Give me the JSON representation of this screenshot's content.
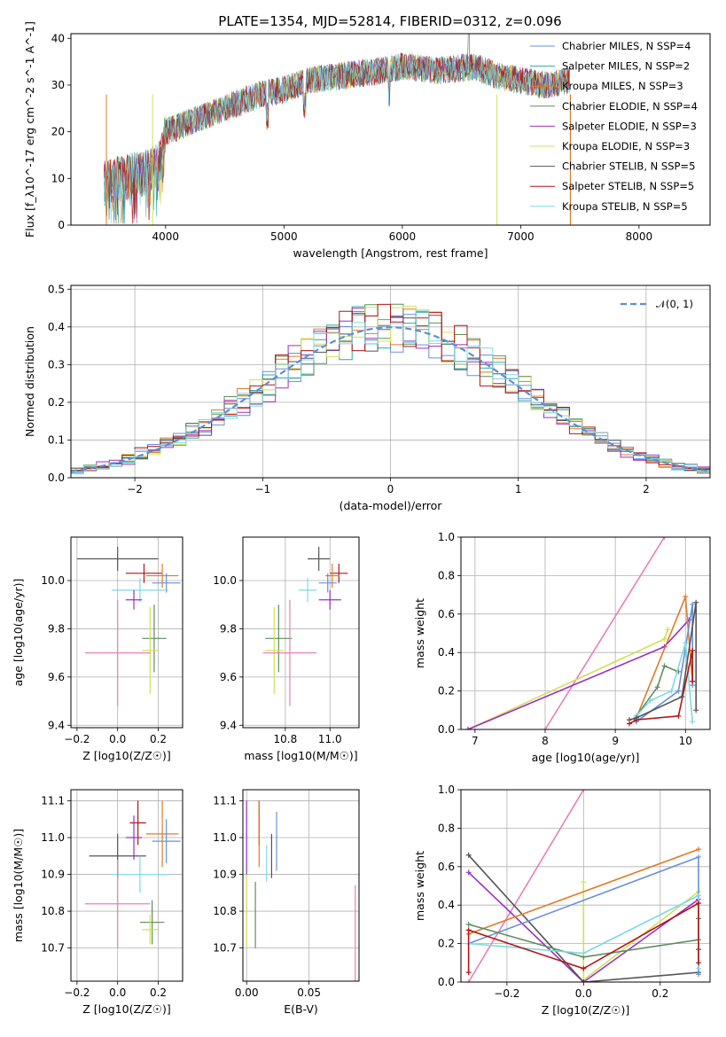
{
  "title": "PLATE=1354, MJD=52814, FIBERID=0312, z=0.096",
  "colors": {
    "chabrier_miles": "#6a8fd8",
    "salpeter_miles": "#2ca8a8",
    "kroupa_miles": "#e07b28",
    "chabrier_elodie": "#5e8e5e",
    "salpeter_elodie": "#9b30c0",
    "kroupa_elodie": "#cfe05a",
    "chabrier_stelib": "#555555",
    "salpeter_stelib": "#b41414",
    "kroupa_stelib": "#7fd8e6",
    "pink": "#e87fb5",
    "normal_line": "#5b8fd6"
  },
  "legend_spectrum": [
    "Chabrier MILES, N$_{SSP}$=4",
    "Salpeter MILES, N$_{SSP}$=2",
    "Kroupa MILES, N$_{SSP}$=3",
    "Chabrier ELODIE, N$_{SSP}$=4",
    "Salpeter ELODIE, N$_{SSP}$=3",
    "Kroupa ELODIE, N$_{SSP}$=3",
    "Chabrier STELIB, N$_{SSP}$=5",
    "Salpeter STELIB, N$_{SSP}$=5",
    "Kroupa STELIB, N$_{SSP}$=5"
  ],
  "legend_hist": "𝒩(0, 1)",
  "chart_data": [
    {
      "type": "line",
      "name": "spectrum",
      "xlabel": "wavelength [Angstrom, rest frame]",
      "ylabel": "Flux [f_λ10^-17 erg cm^-2 s^-1 A^-1]",
      "xlim": [
        3200,
        8600
      ],
      "ylim": [
        0,
        41
      ],
      "xticks": [
        4000,
        5000,
        6000,
        7000,
        8000
      ],
      "yticks": [
        0,
        10,
        20,
        30,
        40
      ],
      "continuum": {
        "x": [
          3480,
          3600,
          3800,
          3950,
          4000,
          4200,
          4500,
          4800,
          5000,
          5200,
          5500,
          5800,
          6000,
          6300,
          6600,
          6800,
          7000,
          7200,
          7400
        ],
        "y": [
          9,
          10,
          11,
          13,
          20,
          22,
          25,
          28,
          29,
          31,
          32,
          33,
          34,
          33,
          34,
          32,
          31,
          30,
          31
        ]
      }
    },
    {
      "type": "step",
      "name": "residual histogram",
      "xlabel": "(data-model)/error",
      "ylabel": "Normed distribution",
      "xlim": [
        -2.5,
        2.5
      ],
      "ylim": [
        0,
        0.51
      ],
      "xticks": [
        -2,
        -1,
        0,
        1,
        2
      ],
      "yticks": [
        0,
        0.1,
        0.2,
        0.3,
        0.4,
        0.5
      ],
      "normal": {
        "mean": 0,
        "sigma": 1
      }
    },
    {
      "type": "scatter",
      "name": "age vs Z",
      "xlabel": "Z [log10(Z/Z☉)]",
      "ylabel": "age  [log10(age/yr)]",
      "xlim": [
        -0.23,
        0.32
      ],
      "ylim": [
        9.39,
        10.18
      ],
      "xticks": [
        -0.2,
        0.0,
        0.2
      ],
      "yticks": [
        9.4,
        9.6,
        9.8,
        10.0
      ],
      "points": [
        {
          "c": "chabrier_stelib",
          "x": 0.0,
          "xe": 0.2,
          "y": 10.09,
          "ye": 0.05
        },
        {
          "c": "salpeter_stelib",
          "x": 0.13,
          "xe": 0.09,
          "y": 10.03,
          "ye": 0.04
        },
        {
          "c": "kroupa_miles",
          "x": 0.22,
          "xe": 0.08,
          "y": 10.02,
          "ye": 0.05
        },
        {
          "c": "chabrier_miles",
          "x": 0.24,
          "xe": 0.07,
          "y": 9.99,
          "ye": 0.04
        },
        {
          "c": "kroupa_stelib",
          "x": 0.11,
          "xe": 0.14,
          "y": 9.96,
          "ye": 0.05
        },
        {
          "c": "salpeter_elodie",
          "x": 0.08,
          "xe": 0.04,
          "y": 9.92,
          "ye": 0.04
        },
        {
          "c": "chabrier_elodie",
          "x": 0.18,
          "xe": 0.06,
          "y": 9.76,
          "ye": 0.14
        },
        {
          "c": "kroupa_elodie",
          "x": 0.16,
          "xe": 0.04,
          "y": 9.71,
          "ye": 0.18
        },
        {
          "c": "pink",
          "x": 0.0,
          "xe": 0.16,
          "y": 9.7,
          "ye": 0.22
        }
      ]
    },
    {
      "type": "scatter",
      "name": "age vs mass",
      "xlabel": "mass [log10(M/M☉)]",
      "ylabel": "",
      "xlim": [
        10.61,
        11.13
      ],
      "ylim": [
        9.39,
        10.18
      ],
      "xticks": [
        10.8,
        11.0
      ],
      "yticks": [
        9.4,
        9.6,
        9.8,
        10.0
      ],
      "points": [
        {
          "c": "chabrier_stelib",
          "x": 10.95,
          "xe": 0.05,
          "y": 10.09,
          "ye": 0.05
        },
        {
          "c": "salpeter_stelib",
          "x": 11.04,
          "xe": 0.04,
          "y": 10.03,
          "ye": 0.04
        },
        {
          "c": "kroupa_miles",
          "x": 11.01,
          "xe": 0.03,
          "y": 10.02,
          "ye": 0.05
        },
        {
          "c": "chabrier_miles",
          "x": 10.99,
          "xe": 0.04,
          "y": 9.99,
          "ye": 0.04
        },
        {
          "c": "kroupa_stelib",
          "x": 10.9,
          "xe": 0.04,
          "y": 9.96,
          "ye": 0.05
        },
        {
          "c": "salpeter_elodie",
          "x": 11.0,
          "xe": 0.05,
          "y": 9.92,
          "ye": 0.04
        },
        {
          "c": "chabrier_elodie",
          "x": 10.77,
          "xe": 0.06,
          "y": 9.76,
          "ye": 0.14
        },
        {
          "c": "kroupa_elodie",
          "x": 10.75,
          "xe": 0.04,
          "y": 9.71,
          "ye": 0.18
        },
        {
          "c": "pink",
          "x": 10.82,
          "xe": 0.12,
          "y": 9.7,
          "ye": 0.22
        }
      ]
    },
    {
      "type": "line",
      "name": "mass weight vs age",
      "xlabel": "age  [log10(age/yr)]",
      "ylabel": "mass weight",
      "xlim": [
        6.8,
        10.35
      ],
      "ylim": [
        0,
        1.0
      ],
      "xticks": [
        7,
        8,
        9,
        10
      ],
      "yticks": [
        0.0,
        0.2,
        0.4,
        0.6,
        0.8,
        1.0
      ],
      "series": [
        {
          "c": "pink",
          "x": [
            8.0,
            9.7
          ],
          "y": [
            0.0,
            1.0
          ]
        },
        {
          "c": "kroupa_elodie",
          "x": [
            6.9,
            9.7,
            9.75
          ],
          "y": [
            0.0,
            0.47,
            0.52
          ]
        },
        {
          "c": "salpeter_elodie",
          "x": [
            6.9,
            9.7,
            10.05
          ],
          "y": [
            0.0,
            0.43,
            0.57
          ]
        },
        {
          "c": "kroupa_miles",
          "x": [
            9.3,
            10.0,
            10.1
          ],
          "y": [
            0.06,
            0.69,
            0.25
          ]
        },
        {
          "c": "chabrier_miles",
          "x": [
            9.3,
            9.9,
            10.1,
            10.1
          ],
          "y": [
            0.04,
            0.2,
            0.65,
            0.23
          ]
        },
        {
          "c": "chabrier_elodie",
          "x": [
            9.3,
            9.6,
            9.7,
            9.9
          ],
          "y": [
            0.07,
            0.22,
            0.33,
            0.3
          ]
        },
        {
          "c": "kroupa_stelib",
          "x": [
            9.3,
            9.5,
            9.8,
            10.0,
            10.1
          ],
          "y": [
            0.07,
            0.15,
            0.2,
            0.45,
            0.04
          ]
        },
        {
          "c": "salpeter_stelib",
          "x": [
            9.2,
            9.3,
            9.9,
            10.1,
            10.1
          ],
          "y": [
            0.03,
            0.05,
            0.07,
            0.41,
            0.25
          ]
        },
        {
          "c": "chabrier_stelib",
          "x": [
            9.2,
            9.3,
            9.95,
            10.15,
            10.15
          ],
          "y": [
            0.05,
            0.06,
            0.17,
            0.66,
            0.1
          ]
        }
      ]
    },
    {
      "type": "scatter",
      "name": "mass vs Z",
      "xlabel": "Z [log10(Z/Z☉)]",
      "ylabel": "mass [log10(M/M☉)]",
      "xlim": [
        -0.23,
        0.32
      ],
      "ylim": [
        10.61,
        11.13
      ],
      "xticks": [
        -0.2,
        0.0,
        0.2
      ],
      "yticks": [
        10.7,
        10.8,
        10.9,
        11.0,
        11.1
      ],
      "points": [
        {
          "c": "salpeter_stelib",
          "x": 0.1,
          "xe": 0.04,
          "y": 11.04,
          "ye": 0.06
        },
        {
          "c": "salpeter_elodie",
          "x": 0.08,
          "xe": 0.04,
          "y": 11.0,
          "ye": 0.06
        },
        {
          "c": "kroupa_miles",
          "x": 0.22,
          "xe": 0.08,
          "y": 11.01,
          "ye": 0.09
        },
        {
          "c": "chabrier_miles",
          "x": 0.24,
          "xe": 0.07,
          "y": 10.99,
          "ye": 0.06
        },
        {
          "c": "chabrier_stelib",
          "x": 0.0,
          "xe": 0.14,
          "y": 10.95,
          "ye": 0.06
        },
        {
          "c": "kroupa_stelib",
          "x": 0.11,
          "xe": 0.14,
          "y": 10.9,
          "ye": 0.05
        },
        {
          "c": "pink",
          "x": 0.0,
          "xe": 0.16,
          "y": 10.82,
          "ye": 0.12
        },
        {
          "c": "chabrier_elodie",
          "x": 0.17,
          "xe": 0.06,
          "y": 10.77,
          "ye": 0.06
        },
        {
          "c": "kroupa_elodie",
          "x": 0.16,
          "xe": 0.04,
          "y": 10.75,
          "ye": 0.04
        }
      ]
    },
    {
      "type": "scatter",
      "name": "mass vs E(B-V)",
      "xlabel": "E(B-V)",
      "ylabel": "",
      "xlim": [
        -0.003,
        0.09
      ],
      "ylim": [
        10.61,
        11.13
      ],
      "xticks": [
        0.0,
        0.05
      ],
      "yticks": [
        10.7,
        10.8,
        10.9,
        11.0,
        11.1
      ],
      "points": [
        {
          "c": "salpeter_elodie",
          "x": 0.0,
          "y": 11.0,
          "ye": 0.1
        },
        {
          "c": "salpeter_stelib",
          "x": 0.01,
          "y": 11.04,
          "ye": 0.06
        },
        {
          "c": "kroupa_miles",
          "x": 0.01,
          "y": 11.01,
          "ye": 0.09
        },
        {
          "c": "chabrier_stelib",
          "x": 0.02,
          "y": 10.95,
          "ye": 0.06
        },
        {
          "c": "chabrier_miles",
          "x": 0.024,
          "y": 10.99,
          "ye": 0.08
        },
        {
          "c": "kroupa_stelib",
          "x": 0.016,
          "y": 10.93,
          "ye": 0.05
        },
        {
          "c": "chabrier_elodie",
          "x": 0.007,
          "y": 10.79,
          "ye": 0.09
        },
        {
          "c": "kroupa_elodie",
          "x": 0.0,
          "y": 10.8,
          "ye": 0.1
        },
        {
          "c": "pink",
          "x": 0.087,
          "y": 10.73,
          "ye": 0.14
        }
      ]
    },
    {
      "type": "line",
      "name": "mass weight vs Z",
      "xlabel": "Z [log10(Z/Z☉)]",
      "ylabel": "mass weight",
      "xlim": [
        -0.32,
        0.33
      ],
      "ylim": [
        0,
        1.0
      ],
      "xticks": [
        -0.2,
        0.0,
        0.2
      ],
      "yticks": [
        0.0,
        0.2,
        0.4,
        0.6,
        0.8,
        1.0
      ],
      "series": [
        {
          "c": "pink",
          "x": [
            -0.3,
            0.0
          ],
          "y": [
            0.0,
            1.0
          ]
        },
        {
          "c": "kroupa_elodie",
          "x": [
            0.0,
            0.0,
            0.3,
            0.3
          ],
          "y": [
            0.52,
            0.01,
            0.47,
            0.05
          ]
        },
        {
          "c": "salpeter_elodie",
          "x": [
            -0.3,
            0.0,
            0.3
          ],
          "y": [
            0.57,
            0.0,
            0.43
          ]
        },
        {
          "c": "chabrier_stelib",
          "x": [
            -0.3,
            0.0,
            0.3,
            0.3
          ],
          "y": [
            0.66,
            0.0,
            0.05,
            0.17
          ]
        },
        {
          "c": "kroupa_miles",
          "x": [
            -0.3,
            0.3
          ],
          "y": [
            0.25,
            0.69
          ]
        },
        {
          "c": "chabrier_miles",
          "x": [
            -0.3,
            0.3,
            0.3
          ],
          "y": [
            0.2,
            0.65,
            0.04
          ]
        },
        {
          "c": "chabrier_elodie",
          "x": [
            -0.3,
            0.0,
            0.3,
            0.3
          ],
          "y": [
            0.3,
            0.13,
            0.22,
            0.33
          ]
        },
        {
          "c": "kroupa_stelib",
          "x": [
            -0.3,
            0.0,
            0.3,
            0.3
          ],
          "y": [
            0.2,
            0.15,
            0.45,
            0.07
          ]
        },
        {
          "c": "salpeter_stelib",
          "x": [
            -0.3,
            -0.3,
            0.0,
            0.3,
            0.3
          ],
          "y": [
            0.05,
            0.27,
            0.07,
            0.41,
            0.1
          ]
        }
      ]
    }
  ]
}
